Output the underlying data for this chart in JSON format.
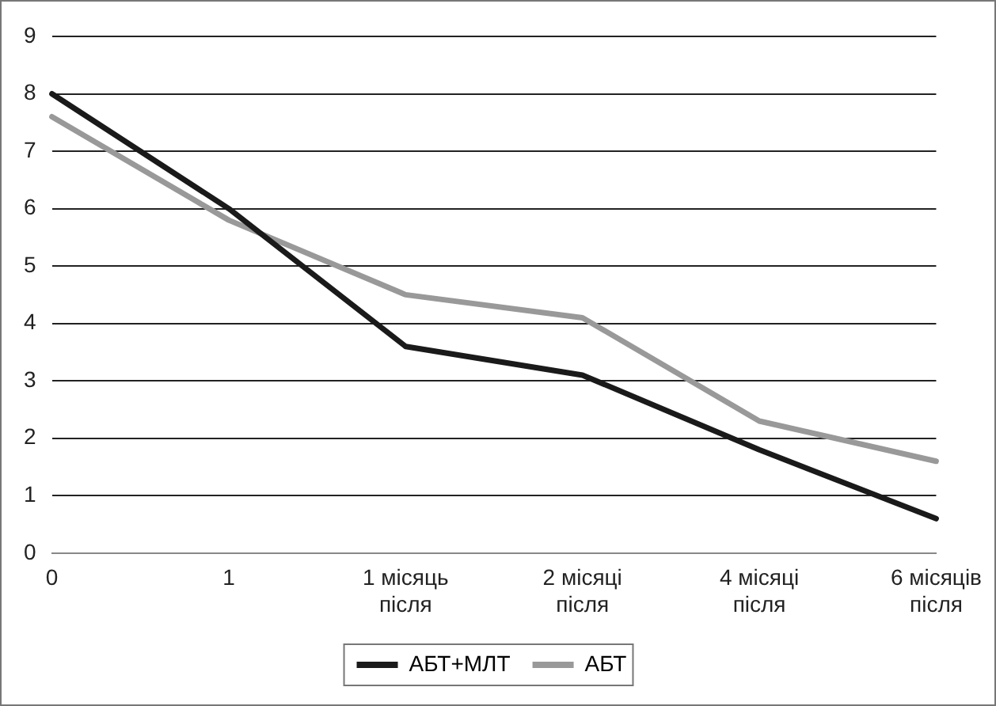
{
  "chart_data": {
    "type": "line",
    "categories": [
      "0",
      "1",
      "1 місяць\nпісля",
      "2 місяці\nпісля",
      "4 місяці\nпісля",
      "6 місяців\nпісля"
    ],
    "series": [
      {
        "name": "АБТ+МЛТ",
        "color": "#1a1a1a",
        "values": [
          8,
          6,
          3.6,
          3.1,
          1.8,
          0.6
        ]
      },
      {
        "name": "АБТ",
        "color": "#999999",
        "values": [
          7.6,
          5.8,
          4.5,
          4.1,
          2.3,
          1.6
        ]
      }
    ],
    "ylim": [
      0,
      9
    ],
    "yticks": [
      0,
      1,
      2,
      3,
      4,
      5,
      6,
      7,
      8,
      9
    ],
    "grid": "y",
    "legend": "bottom",
    "marker": "none",
    "line_style": "solid"
  }
}
